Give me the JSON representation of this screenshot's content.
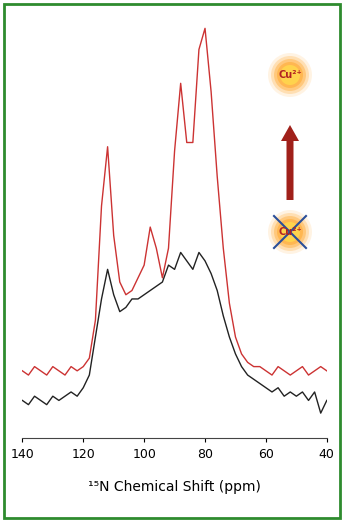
{
  "chart_data": {
    "type": "line",
    "x_label": "¹⁵N Chemical Shift (ppm)",
    "x": [
      140,
      138,
      136,
      134,
      132,
      130,
      128,
      126,
      124,
      122,
      120,
      118,
      116,
      114,
      112,
      110,
      108,
      106,
      104,
      102,
      100,
      98,
      96,
      94,
      92,
      90,
      88,
      86,
      84,
      82,
      80,
      78,
      76,
      74,
      72,
      70,
      68,
      66,
      64,
      62,
      60,
      58,
      56,
      54,
      52,
      50,
      48,
      46,
      44,
      42,
      40
    ],
    "series": [
      {
        "color": "#cc3333",
        "values": [
          16,
          15,
          17,
          16,
          15,
          17,
          16,
          15,
          17,
          16,
          17,
          19,
          28,
          55,
          69,
          48,
          37,
          34,
          35,
          38,
          41,
          50,
          45,
          38,
          45,
          68,
          84,
          70,
          70,
          92,
          97,
          82,
          62,
          45,
          32,
          24,
          20,
          18,
          17,
          17,
          16,
          15,
          17,
          16,
          15,
          16,
          17,
          15,
          16,
          17,
          16
        ]
      },
      {
        "color": "#222222",
        "values": [
          9,
          8,
          10,
          9,
          8,
          10,
          9,
          10,
          11,
          10,
          12,
          15,
          24,
          33,
          40,
          34,
          30,
          31,
          33,
          33,
          34,
          35,
          36,
          37,
          41,
          40,
          44,
          42,
          40,
          44,
          42,
          39,
          35,
          29,
          24,
          20,
          17,
          15,
          14,
          13,
          12,
          11,
          12,
          10,
          11,
          10,
          11,
          9,
          11,
          6,
          9
        ]
      }
    ],
    "xlim": [
      140,
      40
    ],
    "xticks": [
      140,
      120,
      100,
      80,
      60,
      40
    ],
    "ylim": [
      0,
      100
    ],
    "tick_labels": "x",
    "annotations": [
      "Cu²⁺",
      "Cu²⁺"
    ]
  }
}
